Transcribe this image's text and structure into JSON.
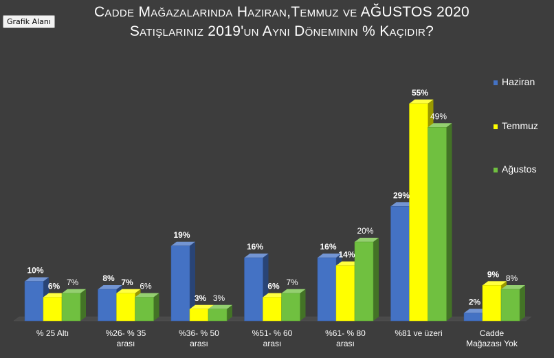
{
  "tooltip": "Grafik Alanı",
  "title": {
    "line1": "Cadde Mağazalarında Haziran,Temmuz ve AĞUSTOS 2020",
    "line2": "Satışlarınız 2019'un Aynı Döneminin % Kaçıdır?"
  },
  "colors": {
    "background": "#3d3d3d",
    "Haziran": "#4472c4",
    "Temmuz": "#ffff00",
    "Ağustos": "#70c040"
  },
  "legend": [
    {
      "name": "Haziran"
    },
    {
      "name": "Temmuz"
    },
    {
      "name": "Ağustos"
    }
  ],
  "chart_data": {
    "type": "bar",
    "style": "3d-clustered-column",
    "categories": [
      [
        "% 25 Altı"
      ],
      [
        "%26- % 35",
        "arası"
      ],
      [
        "%36- % 50",
        "arası"
      ],
      [
        "%51- % 60",
        "arası"
      ],
      [
        "%61- % 80",
        "arası"
      ],
      [
        "%81 ve üzeri"
      ],
      [
        "Cadde",
        "Mağazası Yok"
      ]
    ],
    "series": [
      {
        "name": "Haziran",
        "values": [
          10,
          8,
          19,
          16,
          16,
          29,
          2
        ],
        "labels": [
          "10%",
          "8%",
          "19%",
          "16%",
          "16%",
          "29%",
          "2%"
        ]
      },
      {
        "name": "Temmuz",
        "values": [
          6,
          7,
          3,
          6,
          14,
          55,
          9
        ],
        "labels": [
          "6%",
          "7%",
          "3%",
          "6%",
          "14%",
          "55%",
          "9%"
        ]
      },
      {
        "name": "Ağustos",
        "values": [
          7,
          6,
          3,
          7,
          20,
          49,
          8
        ],
        "labels": [
          "7%",
          "6%",
          "3%",
          "7%",
          "20%",
          "49%",
          "8%"
        ]
      }
    ],
    "ylim": [
      0,
      60
    ],
    "grid": false,
    "legend_position": "right"
  }
}
